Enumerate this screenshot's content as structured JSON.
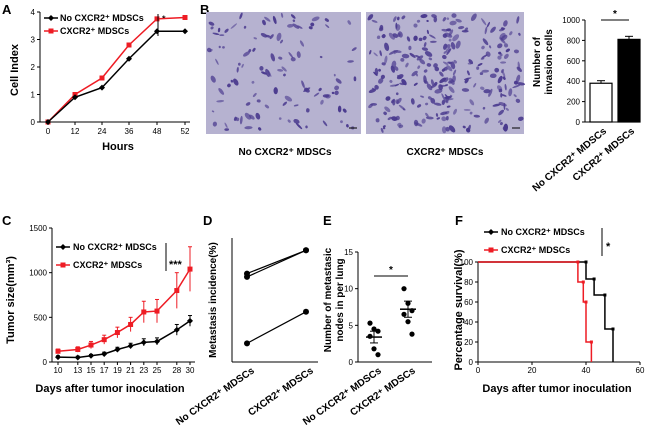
{
  "panels": {
    "a": "A",
    "b": "B",
    "c": "C",
    "d": "D",
    "e": "E",
    "f": "F"
  },
  "micrograph": {
    "left_caption": "No CXCR2⁺ MDSCs",
    "right_caption": "CXCR2⁺ MDSCs"
  },
  "series_names": {
    "no": "No CXCR2⁺ MDSCs",
    "pos": "CXCR2⁺ MDSCs"
  },
  "colors": {
    "no": "#000000",
    "pos": "#ee1c24",
    "micro_bg": "#b6b2d0",
    "micro_cells": "#4a3a8e"
  },
  "chart_data": [
    {
      "id": "A",
      "type": "line",
      "x": [
        0,
        12,
        24,
        36,
        48,
        52
      ],
      "series": [
        {
          "name": "No CXCR2⁺ MDSCs",
          "values": [
            0,
            0.9,
            1.25,
            2.3,
            3.3,
            3.3
          ]
        },
        {
          "name": "CXCR2⁺ MDSCs",
          "values": [
            0,
            1.0,
            1.6,
            2.8,
            3.75,
            3.8
          ]
        }
      ],
      "xlabel": "Hours",
      "ylabel": "Cell Index",
      "xticks": [
        "0",
        "12",
        "24",
        "36",
        "48",
        "52"
      ],
      "yticks": [
        "0",
        "1",
        "2",
        "3",
        "4"
      ],
      "ylim": [
        0,
        4
      ],
      "significance": "*",
      "legend": "top-left"
    },
    {
      "id": "B",
      "type": "bar",
      "categories": [
        "No CXCR2⁺ MDSCs",
        "CXCR2⁺ MDSCs"
      ],
      "values": [
        380,
        810
      ],
      "errors": [
        25,
        30
      ],
      "fills": [
        "#ffffff",
        "#000000"
      ],
      "ylabel": "Number of invasion cells",
      "yticks": [
        "0",
        "200",
        "400",
        "600",
        "800",
        "1000"
      ],
      "ylim": [
        0,
        1000
      ],
      "significance": "*"
    },
    {
      "id": "C",
      "type": "line",
      "x": [
        10,
        13,
        15,
        17,
        19,
        21,
        23,
        25,
        28,
        30
      ],
      "series": [
        {
          "name": "No CXCR2⁺ MDSCs",
          "values": [
            55,
            50,
            70,
            90,
            140,
            180,
            220,
            230,
            360,
            460
          ],
          "errors": [
            15,
            15,
            15,
            20,
            25,
            30,
            40,
            40,
            60,
            60
          ]
        },
        {
          "name": "CXCR2⁺ MDSCs",
          "values": [
            120,
            140,
            190,
            250,
            330,
            420,
            560,
            570,
            800,
            1040
          ],
          "errors": [
            25,
            30,
            40,
            50,
            60,
            80,
            120,
            130,
            200,
            250
          ]
        }
      ],
      "xlabel": "Days after tumor inoculation",
      "ylabel": "Tumor size(mm³)",
      "xticks": [
        "10",
        "13",
        "15",
        "17",
        "19",
        "21",
        "23",
        "25",
        "28",
        "30"
      ],
      "yticks": [
        "0",
        "500",
        "1000",
        "1500"
      ],
      "ylim": [
        0,
        1500
      ],
      "significance": "***",
      "legend": "top-left"
    },
    {
      "id": "D",
      "type": "scatter",
      "categories": [
        "No CXCR2⁺ MDSCs",
        "CXCR2⁺ MDSCs"
      ],
      "pairs": [
        [
          86,
          100
        ],
        [
          84,
          100
        ],
        [
          44,
          63
        ]
      ],
      "ylabel": "Metastasis incidence(%)",
      "ylim": [
        40,
        100
      ]
    },
    {
      "id": "E",
      "type": "scatter",
      "categories": [
        "No CXCR2⁺ MDSCs",
        "CXCR2⁺ MDSCs"
      ],
      "points": [
        [
          5.3,
          4.5,
          4.2,
          3.5,
          1.8,
          1.0
        ],
        [
          10.0,
          8.0,
          7.0,
          6.5,
          5.5,
          3.8
        ]
      ],
      "means": [
        3.4,
        7.2
      ],
      "sems": [
        0.8,
        1.1
      ],
      "ylabel": "Number of metastasic nodes in per lung",
      "yticks": [
        "0",
        "5",
        "10",
        "15"
      ],
      "ylim": [
        0,
        15
      ],
      "significance": "*"
    },
    {
      "id": "F",
      "type": "line",
      "series": [
        {
          "name": "No CXCR2⁺ MDSCs",
          "steps": [
            [
              0,
              100
            ],
            [
              40,
              100
            ],
            [
              40,
              83
            ],
            [
              43,
              83
            ],
            [
              43,
              67
            ],
            [
              47,
              67
            ],
            [
              47,
              33
            ],
            [
              50,
              33
            ],
            [
              50,
              0
            ]
          ]
        },
        {
          "name": "CXCR2⁺ MDSCs",
          "steps": [
            [
              0,
              100
            ],
            [
              37,
              100
            ],
            [
              37,
              80
            ],
            [
              39,
              80
            ],
            [
              39,
              60
            ],
            [
              40,
              60
            ],
            [
              40,
              20
            ],
            [
              42,
              20
            ],
            [
              42,
              0
            ]
          ]
        }
      ],
      "xlabel": "Days after tumor inoculation",
      "ylabel": "Percentage survival(%)",
      "xticks": [
        "0",
        "20",
        "40",
        "60"
      ],
      "yticks": [
        "0",
        "20",
        "40",
        "60",
        "80",
        "100"
      ],
      "xlim": [
        0,
        60
      ],
      "ylim": [
        0,
        100
      ],
      "significance": "*",
      "legend": "top-left"
    }
  ]
}
